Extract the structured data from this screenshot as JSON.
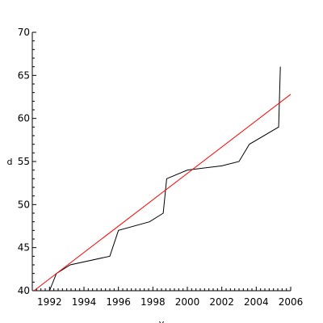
{
  "chart_data": {
    "type": "line",
    "title": "",
    "xlabel": "y",
    "ylabel": "d",
    "xlim": [
      1991.0,
      2006.0
    ],
    "ylim": [
      40,
      70
    ],
    "x_ticks": [
      "1992",
      "1994",
      "1996",
      "1998",
      "2000",
      "2002",
      "2004",
      "2006"
    ],
    "y_ticks": [
      "40",
      "45",
      "50",
      "55",
      "60",
      "65",
      "70"
    ],
    "grid": false,
    "legend": "none",
    "series": [
      {
        "color": "#000000",
        "points": [
          [
            1992.0,
            40.0
          ],
          [
            1992.4,
            42.0
          ],
          [
            1993.2,
            43.0
          ],
          [
            1995.5,
            44.0
          ],
          [
            1996.0,
            47.0
          ],
          [
            1997.8,
            48.0
          ],
          [
            1998.6,
            49.0
          ],
          [
            1998.8,
            53.0
          ],
          [
            2000.0,
            54.0
          ],
          [
            2002.0,
            54.5
          ],
          [
            2003.0,
            55.0
          ],
          [
            2003.6,
            57.0
          ],
          [
            2005.3,
            59.0
          ],
          [
            2005.4,
            66.0
          ]
        ]
      },
      {
        "color": "#ff0000",
        "points": [
          [
            1991.1,
            40.0
          ],
          [
            2006.0,
            62.8
          ]
        ]
      }
    ]
  }
}
